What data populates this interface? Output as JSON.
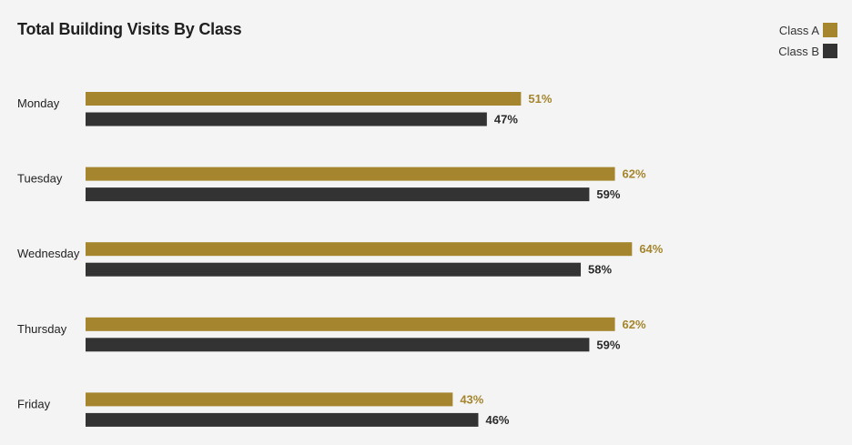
{
  "chart_data": {
    "type": "bar",
    "orientation": "horizontal",
    "title": "Total Building Visits By Class",
    "xlabel": "",
    "ylabel": "",
    "categories": [
      "Monday",
      "Tuesday",
      "Wednesday",
      "Thursday",
      "Friday"
    ],
    "series": [
      {
        "name": "Class A",
        "color": "#a5852d",
        "values": [
          51,
          62,
          64,
          62,
          43
        ],
        "labels": [
          "51%",
          "62%",
          "64%",
          "62%",
          "43%"
        ]
      },
      {
        "name": "Class B",
        "color": "#333333",
        "values": [
          47,
          59,
          58,
          59,
          46
        ],
        "labels": [
          "47%",
          "59%",
          "58%",
          "59%",
          "46%"
        ]
      }
    ],
    "xlim": [
      0,
      100
    ],
    "grid": false,
    "legend_position": "top-right"
  }
}
